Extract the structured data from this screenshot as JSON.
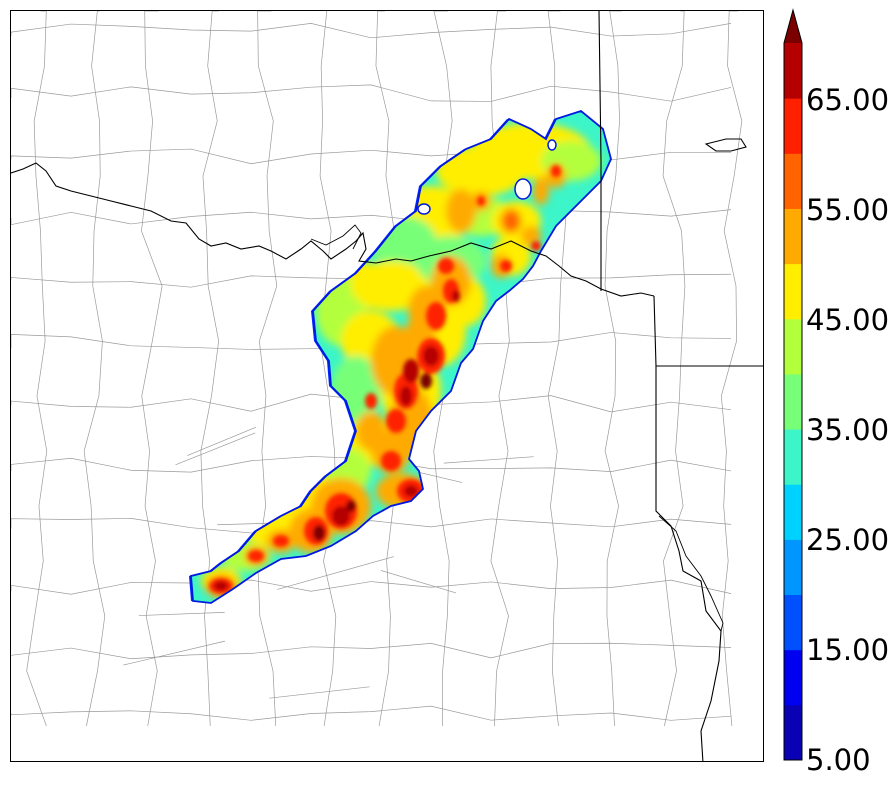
{
  "colorbar": {
    "levels": [
      5,
      10,
      15,
      20,
      25,
      30,
      35,
      40,
      45,
      50,
      55,
      60,
      65,
      70
    ],
    "colors": [
      "#0a00b4",
      "#0000f0",
      "#0050ff",
      "#0096ff",
      "#00d2ff",
      "#3cf5c8",
      "#78ff78",
      "#b4ff3c",
      "#ffee00",
      "#ffaa00",
      "#ff6400",
      "#ff2000",
      "#b40000"
    ],
    "extend_color": "#7a0000",
    "labels": [
      "5.00",
      "15.00",
      "25.00",
      "35.00",
      "45.00",
      "55.00",
      "65.00"
    ],
    "extend": "max"
  },
  "map": {
    "boundary_color": "#000000",
    "county_color": "#9a9a9a"
  }
}
